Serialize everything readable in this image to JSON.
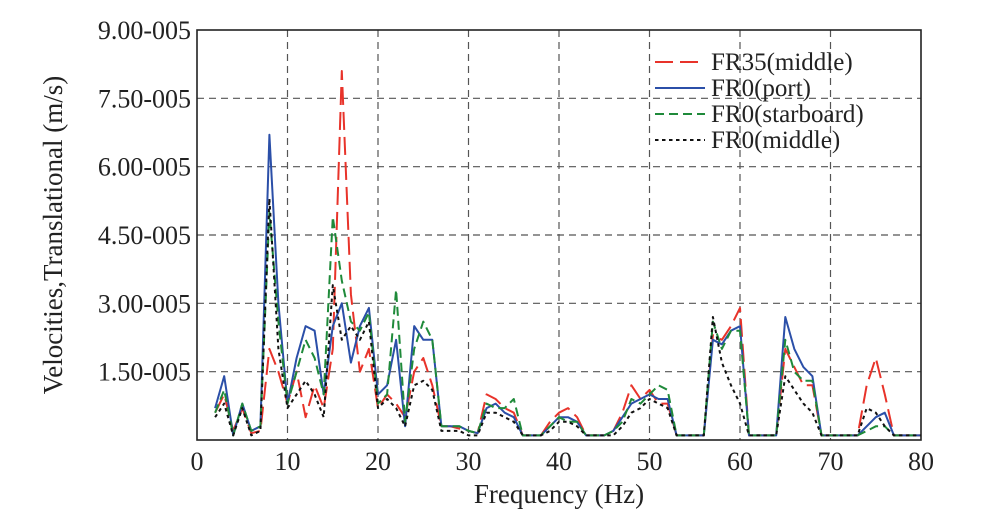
{
  "chart_data": {
    "type": "line",
    "xlabel": "Frequency (Hz)",
    "ylabel": "Velocities,Translational (m/s)",
    "xlim": [
      0,
      80
    ],
    "ylim": [
      0,
      9e-05
    ],
    "x_ticks": [
      0,
      10,
      20,
      30,
      40,
      50,
      60,
      70,
      80
    ],
    "y_ticks": [
      0,
      1.5e-05,
      3e-05,
      4.5e-05,
      6e-05,
      7.5e-05,
      9e-05
    ],
    "x_tick_labels": [
      "0",
      "10",
      "20",
      "30",
      "40",
      "50",
      "60",
      "70",
      "80"
    ],
    "y_tick_labels": [
      "",
      "1.50-005",
      "3.00-005",
      "4.50-005",
      "6.00-005",
      "7.50-005",
      "9.00-005"
    ],
    "grid": true,
    "legend_position": "top-right",
    "x": [
      2,
      3,
      4,
      5,
      6,
      7,
      8,
      9,
      10,
      11,
      12,
      13,
      14,
      15,
      16,
      17,
      18,
      19,
      20,
      21,
      22,
      23,
      24,
      25,
      26,
      27,
      28,
      29,
      30,
      31,
      32,
      33,
      34,
      35,
      36,
      37,
      38,
      39,
      40,
      41,
      42,
      43,
      44,
      45,
      46,
      47,
      48,
      49,
      50,
      51,
      52,
      53,
      54,
      55,
      56,
      57,
      58,
      59,
      60,
      61,
      62,
      63,
      64,
      65,
      66,
      67,
      68,
      69,
      70,
      71,
      72,
      73,
      74,
      75,
      76,
      77,
      78,
      79,
      80
    ],
    "series": [
      {
        "name": "FR35(middle)",
        "color": "#e8332a",
        "dash": "long",
        "values": [
          6e-06,
          1e-05,
          2e-06,
          7e-06,
          1.5e-06,
          2e-06,
          2e-05,
          1.5e-05,
          8e-06,
          1.5e-05,
          5e-06,
          1.2e-05,
          7e-06,
          2e-05,
          8.1e-05,
          3.2e-05,
          1.5e-05,
          2e-05,
          7e-06,
          1e-05,
          8e-06,
          5e-06,
          1.5e-05,
          1.8e-05,
          1.2e-05,
          3e-06,
          3e-06,
          2.5e-06,
          2e-06,
          1.5e-06,
          1e-05,
          9e-06,
          7e-06,
          6e-06,
          1e-06,
          1e-06,
          1e-06,
          4e-06,
          6e-06,
          7e-06,
          5e-06,
          1e-06,
          1e-06,
          1e-06,
          2e-06,
          6e-06,
          1.2e-05,
          9e-06,
          1.1e-05,
          8e-06,
          8e-06,
          1e-06,
          1e-06,
          1e-06,
          1e-06,
          2.3e-05,
          2.2e-05,
          2.5e-05,
          2.9e-05,
          1e-06,
          1e-06,
          1e-06,
          1e-06,
          2e-05,
          1.6e-05,
          1.2e-05,
          1.2e-05,
          1e-06,
          1e-06,
          1e-06,
          1e-06,
          1e-06,
          1.2e-05,
          1.8e-05,
          1e-05,
          1e-06,
          1e-06,
          1e-06,
          1e-06
        ]
      },
      {
        "name": "FR0(port)",
        "color": "#2b4fa8",
        "dash": "solid",
        "values": [
          7e-06,
          1.4e-05,
          1e-06,
          8e-06,
          2e-06,
          3e-06,
          6.7e-05,
          3e-05,
          8e-06,
          1.8e-05,
          2.5e-05,
          2.4e-05,
          1e-05,
          2.5e-05,
          3e-05,
          1.7e-05,
          2.5e-05,
          2.9e-05,
          1e-05,
          1.2e-05,
          2.2e-05,
          3e-06,
          2.5e-05,
          2.2e-05,
          2.2e-05,
          3e-06,
          3e-06,
          3e-06,
          2e-06,
          1.5e-06,
          7e-06,
          8e-06,
          6e-06,
          5e-06,
          1e-06,
          1e-06,
          1e-06,
          3e-06,
          5e-06,
          5e-06,
          4e-06,
          1e-06,
          1e-06,
          1e-06,
          2e-06,
          5e-06,
          8e-06,
          9e-06,
          1e-05,
          9e-06,
          9e-06,
          1e-06,
          1e-06,
          1e-06,
          1e-06,
          2.2e-05,
          2.1e-05,
          2.4e-05,
          2.5e-05,
          1e-06,
          1e-06,
          1e-06,
          1e-06,
          2.7e-05,
          2e-05,
          1.6e-05,
          1.4e-05,
          1e-06,
          1e-06,
          1e-06,
          1e-06,
          1e-06,
          3e-06,
          5e-06,
          6e-06,
          1e-06,
          1e-06,
          1e-06,
          1e-06
        ]
      },
      {
        "name": "FR0(starboard)",
        "color": "#1f8a3a",
        "dash": "medium",
        "values": [
          6e-06,
          1.1e-05,
          1e-06,
          8e-06,
          2e-06,
          3e-06,
          5e-05,
          2.6e-05,
          8e-06,
          1.5e-05,
          2.2e-05,
          1.8e-05,
          1e-05,
          4.9e-05,
          3.5e-05,
          2.6e-05,
          2.4e-05,
          2.8e-05,
          8e-06,
          1e-05,
          3.3e-05,
          4e-06,
          2e-05,
          2.6e-05,
          2.2e-05,
          3e-06,
          3e-06,
          3e-06,
          2e-06,
          1.5e-06,
          8e-06,
          7e-06,
          7e-06,
          9e-06,
          1e-06,
          1e-06,
          1e-06,
          3e-06,
          5e-06,
          4e-06,
          4e-06,
          1e-06,
          1e-06,
          1e-06,
          2e-06,
          4e-06,
          9e-06,
          8e-06,
          1e-05,
          1.2e-05,
          1.1e-05,
          1e-06,
          1e-06,
          1e-06,
          1e-06,
          2.6e-05,
          2e-05,
          2.4e-05,
          2.4e-05,
          1e-06,
          1e-06,
          1e-06,
          1e-06,
          2.2e-05,
          1.5e-05,
          1.3e-05,
          1.3e-05,
          1e-06,
          1e-06,
          1e-06,
          1e-06,
          1e-06,
          2e-06,
          3e-06,
          3e-06,
          1e-06,
          1e-06,
          1e-06,
          1e-06
        ]
      },
      {
        "name": "FR0(middle)",
        "color": "#111111",
        "dash": "dot",
        "values": [
          5e-06,
          8e-06,
          1e-06,
          7e-06,
          1e-06,
          2e-06,
          5.3e-05,
          2e-05,
          7e-06,
          1e-05,
          1.3e-05,
          1e-05,
          5e-06,
          3.4e-05,
          2.2e-05,
          2.5e-05,
          2.2e-05,
          2.6e-05,
          7e-06,
          9e-06,
          7e-06,
          3e-06,
          1.2e-05,
          1.3e-05,
          1.1e-05,
          2e-06,
          2e-06,
          2e-06,
          1e-06,
          1e-06,
          6e-06,
          6e-06,
          5e-06,
          4e-06,
          1e-06,
          1e-06,
          1e-06,
          2e-06,
          4e-06,
          4e-06,
          3e-06,
          1e-06,
          1e-06,
          1e-06,
          1e-06,
          3e-06,
          6e-06,
          7e-06,
          9e-06,
          8e-06,
          7e-06,
          1e-06,
          1e-06,
          1e-06,
          1e-06,
          2.7e-05,
          1.7e-05,
          1.2e-05,
          8e-06,
          1e-06,
          1e-06,
          1e-06,
          1e-06,
          1.4e-05,
          1.1e-05,
          8e-06,
          6e-06,
          1e-06,
          1e-06,
          1e-06,
          1e-06,
          1e-06,
          7e-06,
          6e-06,
          3e-06,
          1e-06,
          1e-06,
          1e-06,
          1e-06
        ]
      }
    ]
  }
}
